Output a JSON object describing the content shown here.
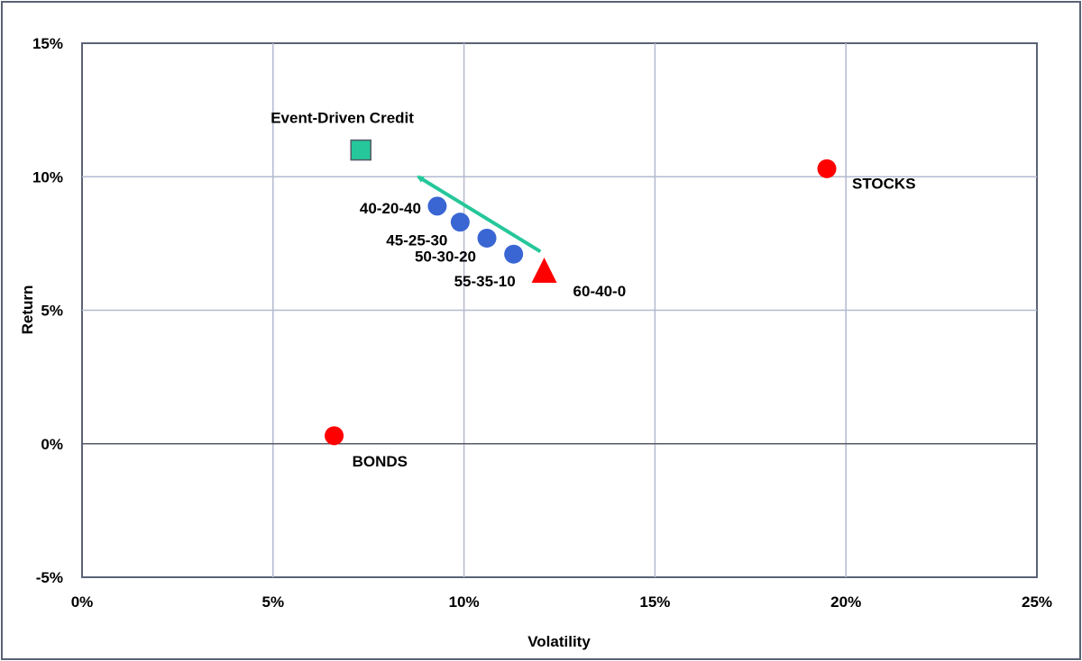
{
  "chart_data": {
    "type": "scatter",
    "xlabel": "Volatility",
    "ylabel": "Return",
    "xlim": [
      0,
      25
    ],
    "ylim": [
      -5,
      15
    ],
    "xticks": [
      "0%",
      "5%",
      "10%",
      "15%",
      "20%",
      "25%"
    ],
    "yticks": [
      "-5%",
      "0%",
      "5%",
      "10%",
      "15%"
    ],
    "grid": true,
    "points": [
      {
        "label": "Event-Driven Credit",
        "x": 7.3,
        "y": 11.0,
        "marker": "square",
        "color": "#26c79a"
      },
      {
        "label": "STOCKS",
        "x": 19.5,
        "y": 10.3,
        "marker": "circle",
        "color": "#ff0000"
      },
      {
        "label": "BONDS",
        "x": 6.6,
        "y": 0.3,
        "marker": "circle",
        "color": "#ff0000"
      },
      {
        "label": "40-20-40",
        "x": 9.3,
        "y": 8.9,
        "marker": "circle",
        "color": "#3a66d4"
      },
      {
        "label": "45-25-30",
        "x": 9.9,
        "y": 8.3,
        "marker": "circle",
        "color": "#3a66d4"
      },
      {
        "label": "50-30-20",
        "x": 10.6,
        "y": 7.7,
        "marker": "circle",
        "color": "#3a66d4"
      },
      {
        "label": "55-35-10",
        "x": 11.3,
        "y": 7.1,
        "marker": "circle",
        "color": "#3a66d4"
      },
      {
        "label": "60-40-0",
        "x": 12.1,
        "y": 6.4,
        "marker": "triangle",
        "color": "#ff0000"
      }
    ],
    "arrow": {
      "from": [
        12.0,
        7.2
      ],
      "to": [
        8.8,
        10.0
      ],
      "color": "#26c79a"
    }
  }
}
